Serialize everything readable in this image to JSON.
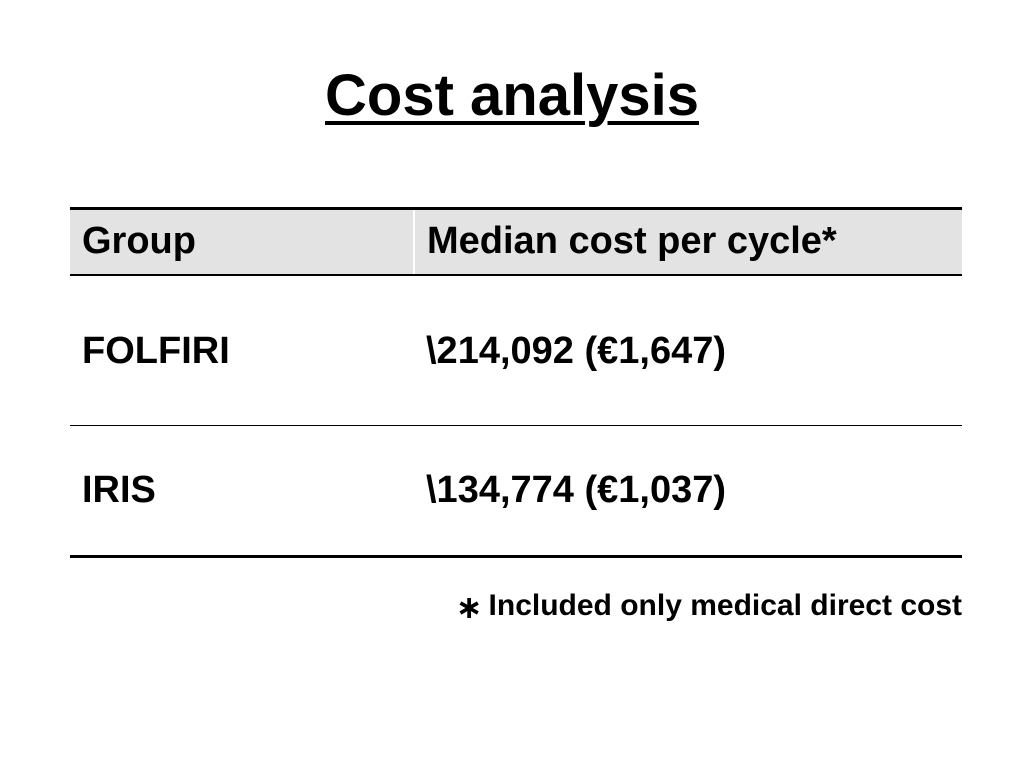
{
  "slide": {
    "title": "Cost analysis"
  },
  "table": {
    "headers": [
      "Group",
      "Median cost per cycle*"
    ],
    "rows": [
      {
        "group": "FOLFIRI",
        "median_cost": "\\214,092 (€1,647)"
      },
      {
        "group": "IRIS",
        "median_cost": "\\134,774 (€1,037)"
      }
    ]
  },
  "footnote": {
    "mark": "∗",
    "text": "Included only medical direct cost"
  }
}
